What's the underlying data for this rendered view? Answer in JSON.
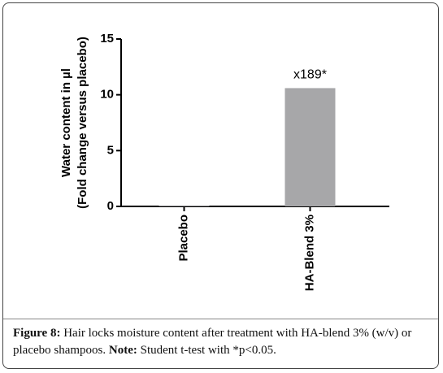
{
  "chart_data": {
    "type": "bar",
    "y_label_lines": [
      "Water content in µl",
      "(Fold change versus placebo)"
    ],
    "categories": [
      "Placebo",
      "HA-Blend 3%"
    ],
    "values": [
      0.06,
      10.6
    ],
    "color": "#a7a7a9",
    "ylim": [
      0,
      15
    ],
    "yticks": [
      0,
      5,
      10,
      15
    ],
    "annotations": [
      {
        "category_index": 1,
        "text": "x189*"
      }
    ]
  },
  "caption": {
    "label": "Figure 8:",
    "text": "Hair locks moisture content after treatment with HA-blend 3% (w/v) or placebo shampoos.",
    "note_label": "Note:",
    "note_text": "Student t-test with *p<0.05."
  }
}
